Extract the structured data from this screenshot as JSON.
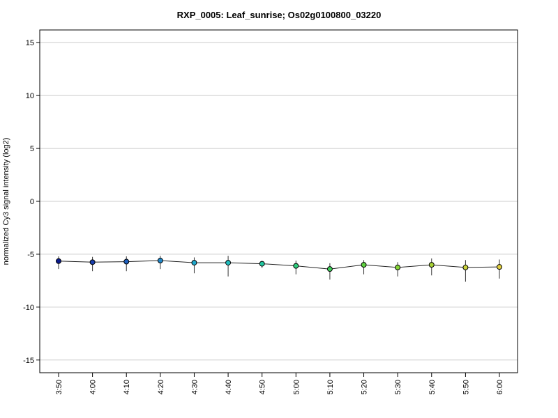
{
  "chart_data": {
    "type": "line",
    "title": "RXP_0005: Leaf_sunrise; Os02g0100800_03220",
    "ylabel": "normalized Cy3 signal intensity (log2)",
    "xlabel": "",
    "ylim": [
      -16.2,
      16.2
    ],
    "yticks": [
      -15,
      -10,
      -5,
      0,
      5,
      10,
      15
    ],
    "grid": true,
    "categories": [
      "3:50",
      "4:00",
      "4:10",
      "4:20",
      "4:30",
      "4:40",
      "4:50",
      "5:00",
      "5:10",
      "5:20",
      "5:30",
      "5:40",
      "5:50",
      "6:00"
    ],
    "values": [
      -5.65,
      -5.75,
      -5.7,
      -5.6,
      -5.8,
      -5.8,
      -5.9,
      -6.1,
      -6.4,
      -6.0,
      -6.25,
      -6.0,
      -6.25,
      -6.2
    ],
    "error_low": [
      -6.4,
      -6.6,
      -6.6,
      -6.4,
      -6.8,
      -7.1,
      -6.3,
      -6.9,
      -7.4,
      -6.9,
      -7.1,
      -7.0,
      -7.6,
      -7.3
    ],
    "error_high": [
      -5.2,
      -5.25,
      -5.2,
      -5.15,
      -5.3,
      -5.15,
      -5.65,
      -5.6,
      -5.85,
      -5.55,
      -5.75,
      -5.4,
      -5.55,
      -5.5
    ],
    "point_colors": [
      "#0a1a8c",
      "#1a3fae",
      "#1e5fbe",
      "#1f86c8",
      "#1fa8cc",
      "#20bfc0",
      "#22c7a0",
      "#2dcc7c",
      "#3fd05a",
      "#5fd240",
      "#85d436",
      "#a8d236",
      "#c8d13a",
      "#e2d040"
    ]
  }
}
